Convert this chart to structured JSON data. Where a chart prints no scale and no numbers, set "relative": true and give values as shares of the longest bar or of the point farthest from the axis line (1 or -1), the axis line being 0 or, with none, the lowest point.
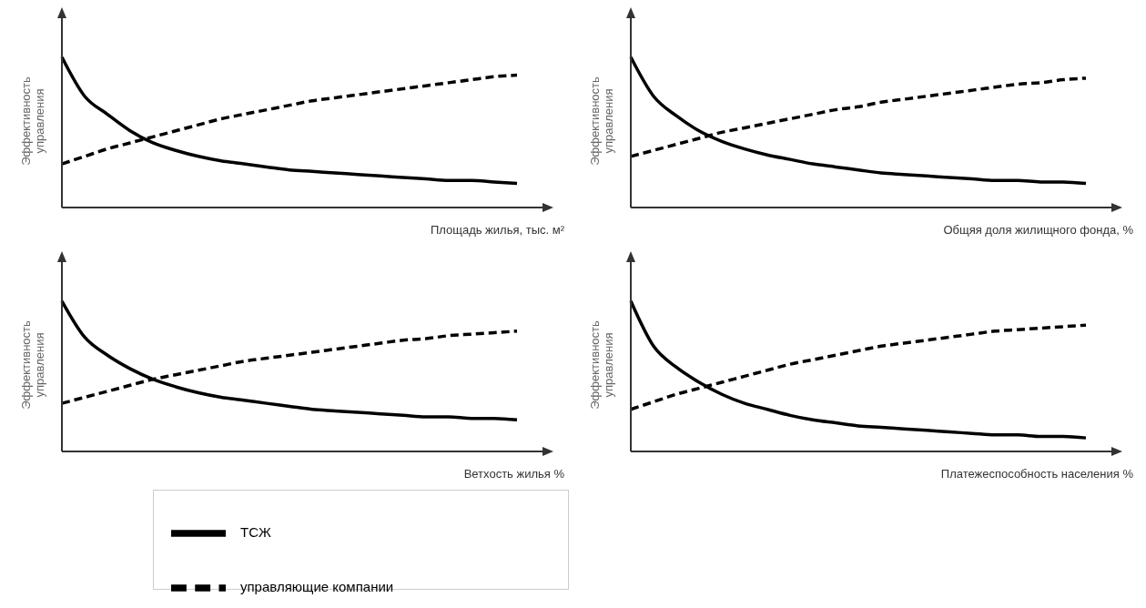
{
  "chart_data": [
    {
      "type": "line",
      "relative": true,
      "ylabel": "Эффективность управления",
      "xlabel": "Площадь жилья, тыс. м²",
      "tick_labels": false,
      "marker": "none",
      "categories": [
        null,
        null,
        null,
        null,
        null,
        null,
        null,
        null,
        null,
        null,
        null,
        null,
        null,
        null,
        null,
        null,
        null,
        null,
        null,
        null,
        null
      ],
      "series": [
        {
          "color": "#000000",
          "line_style": "solid",
          "values": [
            1.0,
            0.74,
            0.62,
            0.51,
            0.43,
            0.38,
            0.34,
            0.31,
            0.29,
            0.27,
            0.25,
            0.24,
            0.23,
            0.22,
            0.21,
            0.2,
            0.19,
            0.18,
            0.18,
            0.17,
            0.16
          ]
        },
        {
          "color": "#000000",
          "line_style": "dashed",
          "values": [
            0.29,
            0.34,
            0.39,
            0.43,
            0.47,
            0.51,
            0.55,
            0.59,
            0.62,
            0.65,
            0.68,
            0.71,
            0.73,
            0.75,
            0.77,
            0.79,
            0.81,
            0.83,
            0.85,
            0.87,
            0.88
          ]
        }
      ]
    },
    {
      "type": "line",
      "relative": true,
      "ylabel": "Эффективность управления",
      "xlabel": "Общяя доля жилищного фонда, %",
      "tick_labels": false,
      "marker": "none",
      "categories": [
        null,
        null,
        null,
        null,
        null,
        null,
        null,
        null,
        null,
        null,
        null,
        null,
        null,
        null,
        null,
        null,
        null,
        null,
        null,
        null,
        null
      ],
      "series": [
        {
          "color": "#000000",
          "line_style": "solid",
          "values": [
            1.0,
            0.74,
            0.61,
            0.51,
            0.44,
            0.39,
            0.35,
            0.32,
            0.29,
            0.27,
            0.25,
            0.23,
            0.22,
            0.21,
            0.2,
            0.19,
            0.18,
            0.18,
            0.17,
            0.17,
            0.16
          ]
        },
        {
          "color": "#000000",
          "line_style": "dashed",
          "values": [
            0.34,
            0.38,
            0.42,
            0.46,
            0.5,
            0.53,
            0.56,
            0.59,
            0.62,
            0.65,
            0.67,
            0.7,
            0.72,
            0.74,
            0.76,
            0.78,
            0.8,
            0.82,
            0.83,
            0.85,
            0.86
          ]
        }
      ]
    },
    {
      "type": "line",
      "relative": true,
      "ylabel": "Эффективность управления",
      "xlabel": "Ветхость жилья %",
      "tick_labels": false,
      "marker": "none",
      "legend": "bottom",
      "categories": [
        null,
        null,
        null,
        null,
        null,
        null,
        null,
        null,
        null,
        null,
        null,
        null,
        null,
        null,
        null,
        null,
        null,
        null,
        null,
        null,
        null
      ],
      "series": [
        {
          "name": "ТСЖ",
          "color": "#000000",
          "line_style": "solid",
          "values": [
            1.0,
            0.76,
            0.64,
            0.55,
            0.48,
            0.43,
            0.39,
            0.36,
            0.34,
            0.32,
            0.3,
            0.28,
            0.27,
            0.26,
            0.25,
            0.24,
            0.23,
            0.23,
            0.22,
            0.22,
            0.21
          ]
        },
        {
          "name": "управляющие компании",
          "color": "#000000",
          "line_style": "dashed",
          "values": [
            0.32,
            0.36,
            0.4,
            0.44,
            0.48,
            0.51,
            0.54,
            0.57,
            0.6,
            0.62,
            0.64,
            0.66,
            0.68,
            0.7,
            0.72,
            0.74,
            0.75,
            0.77,
            0.78,
            0.79,
            0.8
          ]
        }
      ]
    },
    {
      "type": "line",
      "relative": true,
      "ylabel": "Эффективность управления",
      "xlabel": "Платежеспособность населения %",
      "tick_labels": false,
      "marker": "none",
      "categories": [
        null,
        null,
        null,
        null,
        null,
        null,
        null,
        null,
        null,
        null,
        null,
        null,
        null,
        null,
        null,
        null,
        null,
        null,
        null,
        null,
        null
      ],
      "series": [
        {
          "color": "#000000",
          "line_style": "solid",
          "values": [
            1.0,
            0.7,
            0.56,
            0.46,
            0.38,
            0.32,
            0.28,
            0.24,
            0.21,
            0.19,
            0.17,
            0.16,
            0.15,
            0.14,
            0.13,
            0.12,
            0.11,
            0.11,
            0.1,
            0.1,
            0.09
          ]
        },
        {
          "color": "#000000",
          "line_style": "dashed",
          "values": [
            0.28,
            0.33,
            0.38,
            0.42,
            0.46,
            0.5,
            0.54,
            0.58,
            0.61,
            0.64,
            0.67,
            0.7,
            0.72,
            0.74,
            0.76,
            0.78,
            0.8,
            0.81,
            0.82,
            0.83,
            0.84
          ]
        }
      ]
    }
  ]
}
